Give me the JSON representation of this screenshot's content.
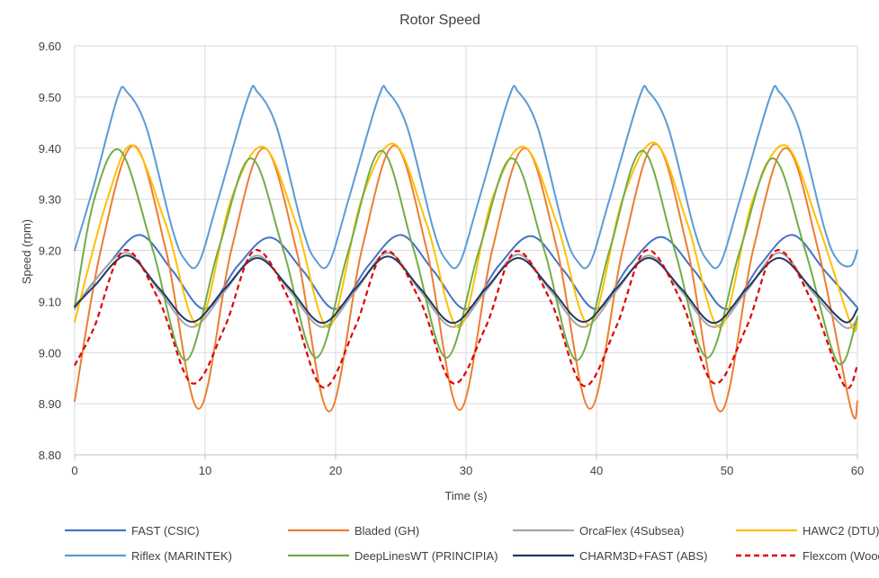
{
  "chart_data": {
    "type": "line",
    "title": "Rotor Speed",
    "xlabel": "Time (s)",
    "ylabel": "Speed (rpm)",
    "xlim": [
      0,
      60
    ],
    "ylim": [
      8.8,
      9.6
    ],
    "xticks": [
      0,
      10,
      20,
      30,
      40,
      50,
      60
    ],
    "xtick_labels": [
      "0",
      "10",
      "20",
      "30",
      "40",
      "50",
      "60"
    ],
    "yticks": [
      8.8,
      8.9,
      9.0,
      9.1,
      9.2,
      9.3,
      9.4,
      9.5,
      9.6
    ],
    "ytick_labels": [
      "8.80",
      "8.90",
      "9.00",
      "9.10",
      "9.20",
      "9.30",
      "9.40",
      "9.50",
      "9.60"
    ],
    "grid": true,
    "legend_position": "bottom",
    "period_s": 10,
    "series": [
      {
        "name": "FAST (CSIC)",
        "color": "#4472C4",
        "dashed": false,
        "x": [
          0,
          2.5,
          5,
          7.5,
          10,
          12.5,
          15,
          17.5,
          20,
          22.5,
          25,
          27.5,
          30,
          32.5,
          35,
          37.5,
          40,
          42.5,
          45,
          47.5,
          50,
          52.5,
          55,
          57.5,
          60
        ],
        "y": [
          9.09,
          9.17,
          9.23,
          9.16,
          9.085,
          9.17,
          9.225,
          9.16,
          9.085,
          9.17,
          9.23,
          9.16,
          9.085,
          9.17,
          9.228,
          9.16,
          9.085,
          9.17,
          9.226,
          9.16,
          9.085,
          9.17,
          9.23,
          9.16,
          9.088
        ]
      },
      {
        "name": "Bladed (GH)",
        "color": "#ED7D31",
        "dashed": false,
        "x": [
          0,
          2,
          4.5,
          7,
          9.5,
          12,
          14.5,
          17,
          19.5,
          22,
          24.5,
          27,
          29.5,
          32,
          34.5,
          37,
          39.5,
          42,
          44.5,
          47,
          49.5,
          52,
          54.5,
          57,
          59.5,
          60
        ],
        "y": [
          8.905,
          9.2,
          9.405,
          9.2,
          8.89,
          9.2,
          9.4,
          9.2,
          8.885,
          9.2,
          9.405,
          9.2,
          8.888,
          9.2,
          9.4,
          9.2,
          8.89,
          9.2,
          9.408,
          9.2,
          8.885,
          9.2,
          9.4,
          9.2,
          8.89,
          8.905
        ]
      },
      {
        "name": "OrcaFlex (4Subsea)",
        "color": "#A5A5A5",
        "dashed": false,
        "x": [
          0,
          1.5,
          4,
          6.5,
          9,
          11.5,
          14,
          16.5,
          19,
          21.5,
          24,
          26.5,
          29,
          31.5,
          34,
          36.5,
          39,
          41.5,
          44,
          46.5,
          49,
          51.5,
          54,
          56.5,
          59,
          60
        ],
        "y": [
          9.085,
          9.14,
          9.195,
          9.12,
          9.05,
          9.12,
          9.19,
          9.12,
          9.05,
          9.12,
          9.195,
          9.12,
          9.05,
          9.12,
          9.192,
          9.12,
          9.05,
          9.12,
          9.19,
          9.12,
          9.05,
          9.12,
          9.195,
          9.12,
          9.05,
          9.065
        ]
      },
      {
        "name": "HAWC2 (DTU)",
        "color": "#FFC000",
        "dashed": false,
        "x": [
          0,
          2.5,
          4.5,
          7,
          9.5,
          12,
          14.5,
          17,
          19.5,
          22,
          24.5,
          27,
          29.5,
          32,
          34.5,
          37,
          39.5,
          42,
          44.5,
          47,
          49.5,
          52,
          54.5,
          57,
          59.5,
          60
        ],
        "y": [
          9.06,
          9.3,
          9.405,
          9.25,
          9.055,
          9.3,
          9.402,
          9.25,
          9.05,
          9.3,
          9.408,
          9.25,
          9.05,
          9.3,
          9.402,
          9.25,
          9.055,
          9.3,
          9.41,
          9.25,
          9.05,
          9.3,
          9.405,
          9.25,
          9.055,
          9.06
        ]
      },
      {
        "name": "Riflex (MARINTEK)",
        "color": "#5B9BD5",
        "dashed": false,
        "x": [
          0,
          1.5,
          3.3,
          4,
          5.5,
          7.5,
          8.5,
          9.5,
          11,
          13.3,
          14,
          15.5,
          17.5,
          18.5,
          19.5,
          21,
          23.3,
          24,
          25.5,
          27.5,
          28.5,
          29.5,
          31,
          33.3,
          34,
          35.5,
          37.5,
          38.5,
          39.5,
          41,
          43.3,
          44,
          45.5,
          47.5,
          48.5,
          49.5,
          51,
          53.3,
          54,
          55.5,
          57.5,
          58.5,
          59.5,
          60
        ],
        "y": [
          9.2,
          9.33,
          9.5,
          9.51,
          9.44,
          9.24,
          9.18,
          9.175,
          9.3,
          9.5,
          9.51,
          9.44,
          9.24,
          9.18,
          9.175,
          9.3,
          9.5,
          9.51,
          9.44,
          9.24,
          9.18,
          9.175,
          9.3,
          9.5,
          9.51,
          9.44,
          9.24,
          9.18,
          9.175,
          9.3,
          9.5,
          9.51,
          9.44,
          9.24,
          9.18,
          9.175,
          9.3,
          9.5,
          9.51,
          9.44,
          9.24,
          9.18,
          9.17,
          9.2
        ]
      },
      {
        "name": "DeepLinesWT (PRINCIPIA)",
        "color": "#70AD47",
        "dashed": false,
        "x": [
          0,
          1.5,
          3.5,
          6,
          8.5,
          11,
          13.5,
          16,
          18.5,
          21,
          23.5,
          26,
          28.5,
          31,
          33.5,
          36,
          38.5,
          41,
          43.5,
          46,
          48.5,
          51,
          53.5,
          56,
          58.5,
          60
        ],
        "y": [
          9.09,
          9.3,
          9.395,
          9.2,
          8.985,
          9.2,
          9.38,
          9.2,
          8.99,
          9.2,
          9.395,
          9.2,
          8.99,
          9.2,
          9.38,
          9.2,
          8.985,
          9.2,
          9.395,
          9.2,
          8.99,
          9.2,
          9.38,
          9.2,
          8.98,
          9.07
        ]
      },
      {
        "name": "CHARM3D+FAST (ABS)",
        "color": "#203864",
        "dashed": false,
        "x": [
          0,
          1.5,
          4,
          6.5,
          9,
          11.5,
          14,
          16.5,
          19,
          21.5,
          24,
          26.5,
          29,
          31.5,
          34,
          36.5,
          39,
          41.5,
          44,
          46.5,
          49,
          51.5,
          54,
          56.5,
          59,
          60
        ],
        "y": [
          9.09,
          9.13,
          9.19,
          9.125,
          9.06,
          9.125,
          9.185,
          9.125,
          9.058,
          9.125,
          9.188,
          9.125,
          9.058,
          9.125,
          9.185,
          9.125,
          9.06,
          9.125,
          9.185,
          9.125,
          9.058,
          9.125,
          9.185,
          9.125,
          9.06,
          9.085
        ]
      },
      {
        "name": "Flexcom (Wood)",
        "color": "#E00000",
        "dashed": true,
        "x": [
          0,
          1.5,
          3.8,
          6.5,
          9,
          11.5,
          13.8,
          16.5,
          19,
          21.5,
          23.8,
          26.5,
          29,
          31.5,
          33.8,
          36.5,
          39,
          41.5,
          43.8,
          46.5,
          49,
          51.5,
          53.8,
          56.5,
          59,
          60
        ],
        "y": [
          8.975,
          9.05,
          9.2,
          9.1,
          8.94,
          9.05,
          9.2,
          9.1,
          8.932,
          9.05,
          9.198,
          9.1,
          8.94,
          9.05,
          9.198,
          9.1,
          8.935,
          9.05,
          9.2,
          9.1,
          8.94,
          9.05,
          9.2,
          9.1,
          8.935,
          8.975
        ]
      }
    ]
  }
}
